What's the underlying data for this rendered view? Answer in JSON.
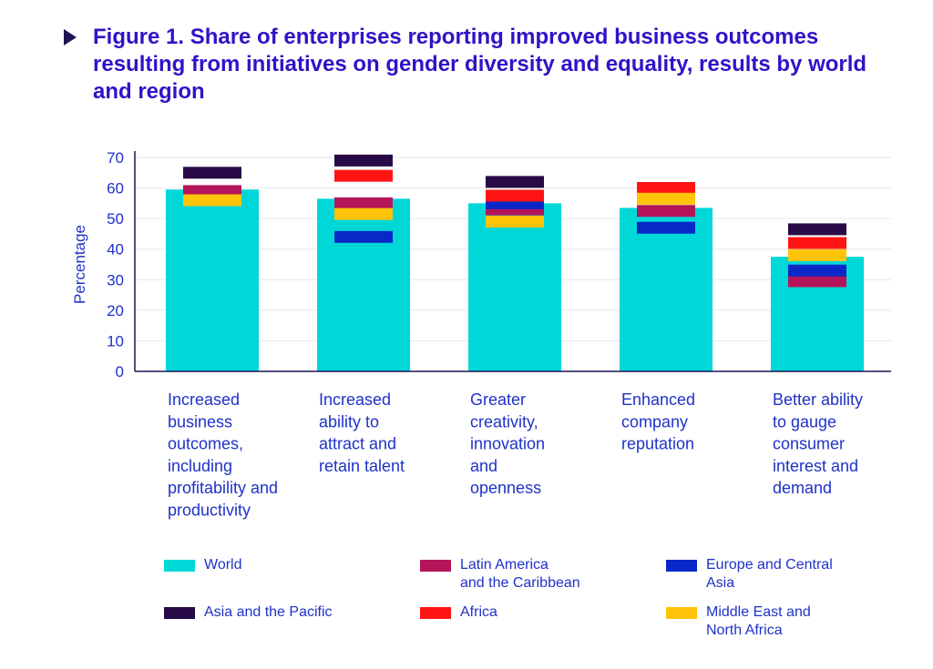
{
  "title": "Figure 1. Share of enterprises reporting improved business outcomes resulting from initiatives on gender diversity and equality, results by world and region",
  "colors": {
    "World": "#00d7d7",
    "Latin America and the Caribbean": "#b4145a",
    "Europe and Central Asia": "#0a28c8",
    "Asia and the Pacific": "#280a46",
    "Africa": "#ff1414",
    "Middle East and North Africa": "#ffc30a",
    "text": "#1e32c8",
    "axis": "#1e1450",
    "grid": "#e6e6ee"
  },
  "chart_data": {
    "type": "bar",
    "ylabel": "Percentage",
    "ylim": [
      0,
      70
    ],
    "yticks": [
      0,
      10,
      20,
      30,
      40,
      50,
      60,
      70
    ],
    "grid": true,
    "legend_position": "bottom",
    "categories": [
      "Increased business outcomes, including profitability and productivity",
      "Increased ability to attract and retain talent",
      "Greater creativity, innovation and openness",
      "Enhanced company reputation",
      "Better ability to gauge consumer interest and demand"
    ],
    "category_lines": [
      [
        "Increased",
        "business",
        "outcomes,",
        "including",
        "profitability and",
        "productivity"
      ],
      [
        "Increased",
        "ability to",
        "attract and",
        "retain talent"
      ],
      [
        "Greater",
        "creativity,",
        "innovation",
        "and",
        "openness"
      ],
      [
        "Enhanced",
        "company",
        "reputation"
      ],
      [
        "Better ability",
        "to gauge",
        "consumer",
        "interest and",
        "demand"
      ]
    ],
    "series": [
      {
        "name": "World",
        "mark": "bar",
        "values": [
          59.5,
          56.5,
          55,
          53.5,
          37.5
        ]
      },
      {
        "name": "Latin America and the Caribbean",
        "mark": "marker",
        "values": [
          59,
          55,
          53,
          52.5,
          29.5
        ]
      },
      {
        "name": "Europe and Central Asia",
        "mark": "marker",
        "values": [
          null,
          44,
          55,
          47,
          33
        ]
      },
      {
        "name": "Asia and the Pacific",
        "mark": "marker",
        "values": [
          65,
          69,
          62,
          60,
          46.5
        ]
      },
      {
        "name": "Africa",
        "mark": "marker",
        "values": [
          null,
          64,
          57.5,
          60,
          42
        ]
      },
      {
        "name": "Middle East and North Africa",
        "mark": "marker",
        "values": [
          56,
          51.5,
          49,
          56.5,
          38
        ]
      }
    ]
  },
  "legend": [
    {
      "name": "World",
      "lines": [
        "World"
      ]
    },
    {
      "name": "Latin America and the Caribbean",
      "lines": [
        "Latin America",
        "and the Caribbean"
      ]
    },
    {
      "name": "Europe and Central Asia",
      "lines": [
        "Europe and Central",
        "Asia"
      ]
    },
    {
      "name": "Asia and the Pacific",
      "lines": [
        "Asia and the Pacific"
      ]
    },
    {
      "name": "Africa",
      "lines": [
        "Africa"
      ]
    },
    {
      "name": "Middle East and North Africa",
      "lines": [
        "Middle East and",
        "North Africa"
      ]
    }
  ]
}
